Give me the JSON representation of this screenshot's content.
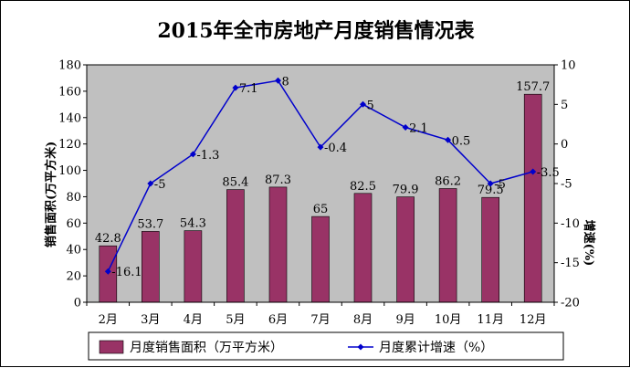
{
  "chart_data": {
    "type": "bar+line",
    "title": "2015年全市房地产月度销售情况表",
    "categories": [
      "2月",
      "3月",
      "4月",
      "5月",
      "6月",
      "7月",
      "8月",
      "9月",
      "10月",
      "11月",
      "12月"
    ],
    "series": [
      {
        "name": "月度销售面积（万平方米）",
        "type": "bar",
        "axis": "left",
        "color": "#993366",
        "values": [
          42.8,
          53.7,
          54.3,
          85.4,
          87.3,
          65,
          82.5,
          79.9,
          86.2,
          79.5,
          157.7
        ],
        "labels": [
          "42.8",
          "53.7",
          "54.3",
          "85.4",
          "87.3",
          "65",
          "82.5",
          "79.9",
          "86.2",
          "79.5",
          "157.7"
        ]
      },
      {
        "name": "月度累计增速（%）",
        "type": "line",
        "axis": "right",
        "color": "#0000cc",
        "values": [
          -16.1,
          -5,
          -1.3,
          7.1,
          8,
          -0.4,
          5,
          2.1,
          0.5,
          -5,
          -3.5
        ],
        "labels": [
          "-16.1",
          "-5",
          "-1.3",
          "7.1",
          "8",
          "-0.4",
          "5",
          "2.1",
          "0.5",
          "-5",
          "-3.5"
        ]
      }
    ],
    "ylabel_left": "销售面积(万平方米)",
    "ylabel_right": "增速(%)",
    "ylim_left": [
      0,
      180
    ],
    "yticks_left": [
      "0",
      "20",
      "40",
      "60",
      "80",
      "100",
      "120",
      "140",
      "160",
      "180"
    ],
    "ylim_right": [
      -20,
      10
    ],
    "yticks_right": [
      "-20",
      "-15",
      "-10",
      "-5",
      "0",
      "5",
      "10"
    ],
    "plot_background": "#c0c0c0",
    "grid": false,
    "legend_position": "bottom"
  }
}
